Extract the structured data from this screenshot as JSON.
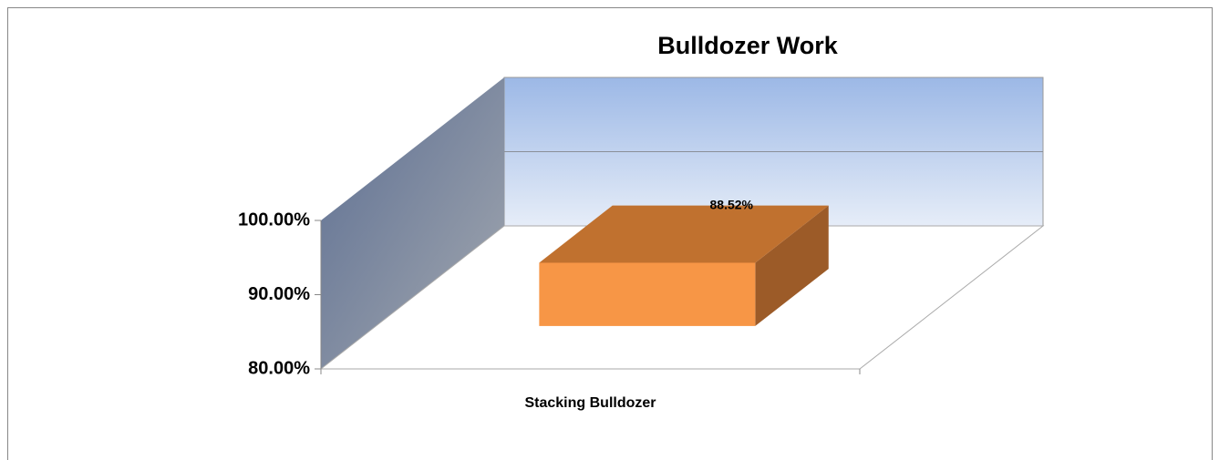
{
  "chart_data": {
    "type": "bar3d",
    "title": "Bulldozer Work",
    "categories": [
      "Stacking Bulldozer"
    ],
    "values": [
      88.52
    ],
    "value_labels": [
      "88.52%"
    ],
    "color": "#f79646",
    "ylim": [
      80,
      100
    ],
    "yticks": [
      {
        "value": 80,
        "label": "80.00%"
      },
      {
        "value": 90,
        "label": "90.00%"
      },
      {
        "value": 100,
        "label": "100.00%"
      }
    ],
    "grid": true
  }
}
